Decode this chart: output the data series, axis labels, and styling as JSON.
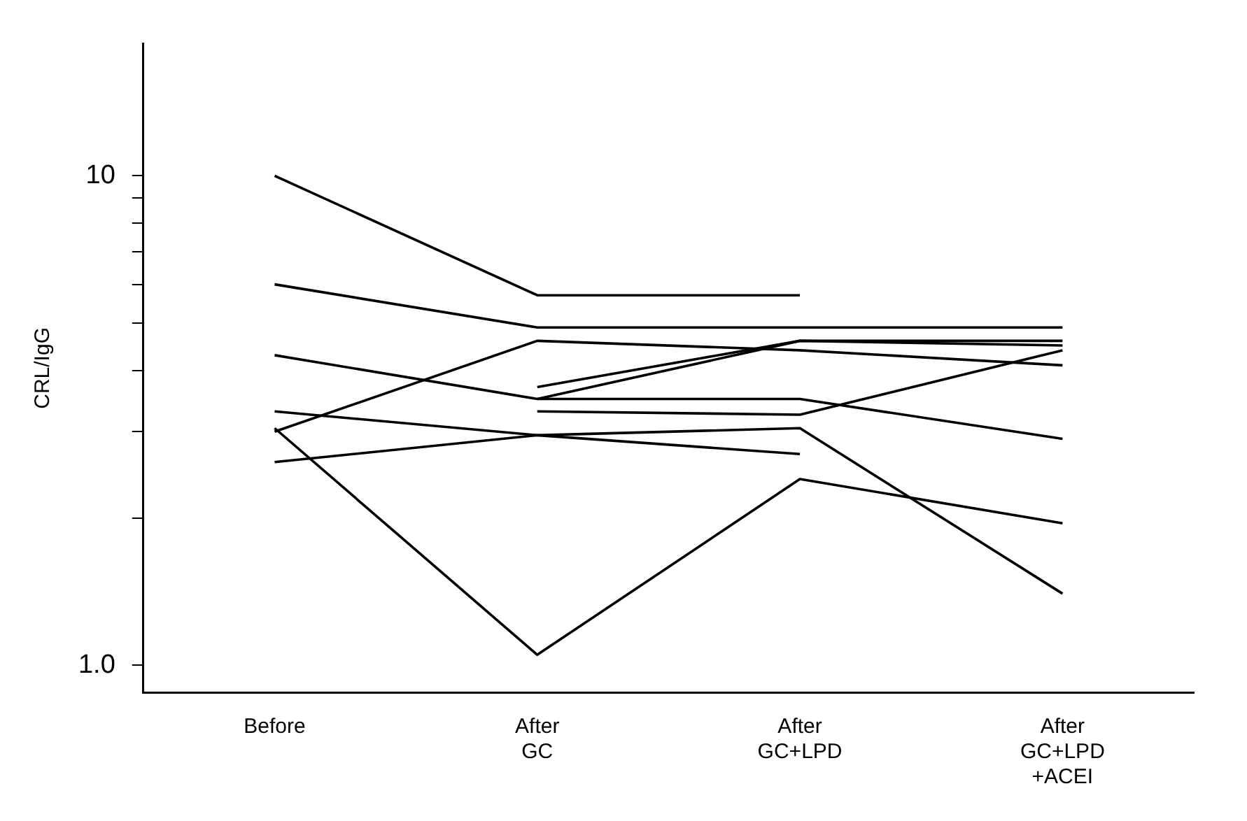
{
  "chart_data": {
    "type": "line",
    "ylabel": "CRL/IgG",
    "log": true,
    "categories": [
      "Before",
      "After GC",
      "After GC+LPD",
      "After GC+LPD +ACEI"
    ],
    "series": [
      {
        "color": "#000000",
        "values": [
          10.0,
          5.7,
          5.7,
          null
        ]
      },
      {
        "color": "#000000",
        "values": [
          6.0,
          4.9,
          4.9,
          4.9
        ]
      },
      {
        "color": "#000000",
        "values": [
          4.3,
          3.5,
          3.5,
          2.9
        ]
      },
      {
        "color": "#000000",
        "values": [
          3.0,
          4.6,
          4.4,
          4.1
        ]
      },
      {
        "color": "#000000",
        "values": [
          null,
          3.7,
          4.6,
          4.6
        ]
      },
      {
        "color": "#000000",
        "values": [
          null,
          3.5,
          4.6,
          4.5
        ]
      },
      {
        "color": "#000000",
        "values": [
          null,
          3.3,
          3.25,
          4.4
        ]
      },
      {
        "color": "#000000",
        "values": [
          3.3,
          2.95,
          2.7,
          null
        ]
      },
      {
        "color": "#000000",
        "values": [
          2.6,
          2.95,
          3.05,
          1.4
        ]
      },
      {
        "color": "#000000",
        "values": [
          3.05,
          1.05,
          2.4,
          1.95
        ]
      }
    ],
    "ylim": [
      0.88,
      18.6
    ],
    "yticks": [
      {
        "value": 1,
        "label": "1.0"
      },
      {
        "value": 2,
        "label": null
      },
      {
        "value": 3,
        "label": null
      },
      {
        "value": 4,
        "label": null
      },
      {
        "value": 5,
        "label": null
      },
      {
        "value": 6,
        "label": null
      },
      {
        "value": 7,
        "label": null
      },
      {
        "value": 8,
        "label": null
      },
      {
        "value": 9,
        "label": null
      },
      10
    ],
    "grid": false,
    "legend": false,
    "marker": "none",
    "line_style": "solid"
  }
}
